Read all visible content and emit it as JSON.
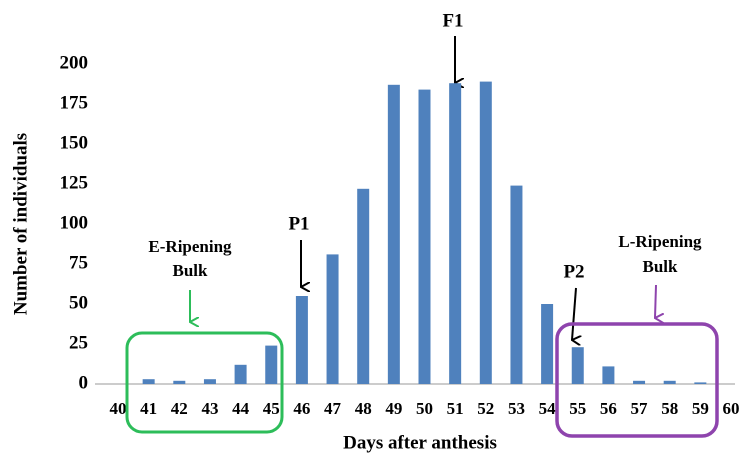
{
  "chart_data": {
    "type": "bar",
    "x_label": "Days after anthesis",
    "y_label": "Number of individuals",
    "x": [
      41,
      42,
      43,
      44,
      45,
      46,
      47,
      48,
      49,
      50,
      51,
      52,
      53,
      54,
      55,
      56,
      57,
      58,
      59
    ],
    "values": [
      3,
      2,
      3,
      12,
      24,
      55,
      81,
      122,
      187,
      184,
      188,
      189,
      124,
      50,
      23,
      11,
      2,
      2,
      1
    ],
    "color": "#4f81bd",
    "xlim": [
      40,
      60
    ],
    "xticks": [
      40,
      41,
      42,
      43,
      44,
      45,
      46,
      47,
      48,
      49,
      50,
      51,
      52,
      53,
      54,
      55,
      56,
      57,
      58,
      59,
      60
    ],
    "ylim": [
      0,
      200
    ],
    "yticks": [
      0,
      25,
      50,
      75,
      100,
      125,
      150,
      175,
      200
    ],
    "grid": false,
    "annotations": [
      "F1",
      "P1",
      "P2",
      [
        "E-Ripening",
        "Bulk"
      ],
      [
        "L-Ripening",
        "Bulk"
      ]
    ]
  }
}
